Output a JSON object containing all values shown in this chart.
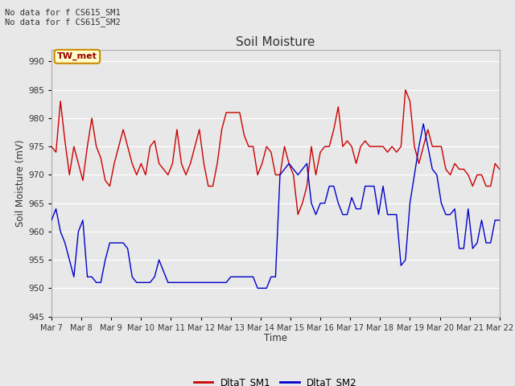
{
  "title": "Soil Moisture",
  "xlabel": "Time",
  "ylabel": "Soil Moisture (mV)",
  "ylim": [
    945,
    992
  ],
  "yticks": [
    945,
    950,
    955,
    960,
    965,
    970,
    975,
    980,
    985,
    990
  ],
  "annotation_text": "No data for f CS615_SM1\nNo data for f CS615_SM2",
  "legend_box_text": "TW_met",
  "x_labels": [
    "Mar 7",
    "Mar 8",
    "Mar 9",
    "Mar 10",
    "Mar 11",
    "Mar 12",
    "Mar 13",
    "Mar 14",
    "Mar 15",
    "Mar 16",
    "Mar 17",
    "Mar 18",
    "Mar 19",
    "Mar 20",
    "Mar 21",
    "Mar 22"
  ],
  "sm1_color": "#cc0000",
  "sm2_color": "#0000cc",
  "sm1_label": "DltaT_SM1",
  "sm2_label": "DltaT_SM2",
  "sm1_x": [
    0,
    0.15,
    0.3,
    0.45,
    0.6,
    0.75,
    0.9,
    1.05,
    1.2,
    1.35,
    1.5,
    1.65,
    1.8,
    1.95,
    2.1,
    2.25,
    2.4,
    2.55,
    2.7,
    2.85,
    3.0,
    3.15,
    3.3,
    3.45,
    3.6,
    3.75,
    3.9,
    4.05,
    4.2,
    4.35,
    4.5,
    4.65,
    4.8,
    4.95,
    5.1,
    5.25,
    5.4,
    5.55,
    5.7,
    5.85,
    6.0,
    6.15,
    6.3,
    6.45,
    6.6,
    6.75,
    6.9,
    7.05,
    7.2,
    7.35,
    7.5,
    7.65,
    7.8,
    7.95,
    8.1,
    8.25,
    8.4,
    8.55,
    8.7,
    8.85,
    9.0,
    9.15,
    9.3,
    9.45,
    9.6,
    9.75,
    9.9,
    10.05,
    10.2,
    10.35,
    10.5,
    10.65,
    10.8,
    10.95,
    11.1,
    11.25,
    11.4,
    11.55,
    11.7,
    11.85,
    12.0,
    12.15,
    12.3,
    12.45,
    12.6,
    12.75,
    12.9,
    13.05,
    13.2,
    13.35,
    13.5,
    13.65,
    13.8,
    13.95,
    14.1,
    14.25,
    14.4,
    14.55,
    14.7,
    14.85,
    15.0
  ],
  "sm1_y": [
    975,
    974,
    983,
    976,
    970,
    975,
    972,
    969,
    975,
    980,
    975,
    973,
    969,
    968,
    972,
    975,
    978,
    975,
    972,
    970,
    972,
    970,
    975,
    976,
    972,
    971,
    970,
    972,
    978,
    972,
    970,
    972,
    975,
    978,
    972,
    968,
    968,
    972,
    978,
    981,
    981,
    981,
    981,
    977,
    975,
    975,
    970,
    972,
    975,
    974,
    970,
    970,
    975,
    972,
    970,
    963,
    965,
    968,
    975,
    970,
    974,
    975,
    975,
    978,
    982,
    975,
    976,
    975,
    972,
    975,
    976,
    975,
    975,
    975,
    975,
    974,
    975,
    974,
    975,
    985,
    983,
    975,
    972,
    975,
    978,
    975,
    975,
    975,
    971,
    970,
    972,
    971,
    971,
    970,
    968,
    970,
    970,
    968,
    968,
    972,
    971
  ],
  "sm2_x": [
    0,
    0.15,
    0.3,
    0.45,
    0.6,
    0.75,
    0.9,
    1.05,
    1.2,
    1.35,
    1.5,
    1.65,
    1.8,
    1.95,
    2.1,
    2.25,
    2.4,
    2.55,
    2.7,
    2.85,
    3.0,
    3.15,
    3.3,
    3.45,
    3.6,
    3.75,
    3.9,
    4.05,
    4.2,
    4.35,
    4.5,
    4.65,
    4.8,
    4.95,
    5.1,
    5.25,
    5.4,
    5.55,
    5.7,
    5.85,
    6.0,
    6.15,
    6.3,
    6.45,
    6.6,
    6.75,
    6.9,
    7.05,
    7.2,
    7.35,
    7.5,
    7.65,
    7.8,
    7.95,
    8.1,
    8.25,
    8.4,
    8.55,
    8.7,
    8.85,
    9.0,
    9.15,
    9.3,
    9.45,
    9.6,
    9.75,
    9.9,
    10.05,
    10.2,
    10.35,
    10.5,
    10.65,
    10.8,
    10.95,
    11.1,
    11.25,
    11.4,
    11.55,
    11.7,
    11.85,
    12.0,
    12.15,
    12.3,
    12.45,
    12.6,
    12.75,
    12.9,
    13.05,
    13.2,
    13.35,
    13.5,
    13.65,
    13.8,
    13.95,
    14.1,
    14.25,
    14.4,
    14.55,
    14.7,
    14.85,
    15.0
  ],
  "sm2_y": [
    962,
    964,
    960,
    958,
    955,
    952,
    960,
    962,
    952,
    952,
    951,
    951,
    955,
    958,
    958,
    958,
    958,
    957,
    952,
    951,
    951,
    951,
    951,
    952,
    955,
    953,
    951,
    951,
    951,
    951,
    951,
    951,
    951,
    951,
    951,
    951,
    951,
    951,
    951,
    951,
    952,
    952,
    952,
    952,
    952,
    952,
    950,
    950,
    950,
    952,
    952,
    970,
    971,
    972,
    971,
    970,
    971,
    972,
    965,
    963,
    965,
    965,
    968,
    968,
    965,
    963,
    963,
    966,
    964,
    964,
    968,
    968,
    968,
    963,
    968,
    963,
    963,
    963,
    954,
    955,
    965,
    970,
    975,
    979,
    975,
    971,
    970,
    965,
    963,
    963,
    964,
    957,
    957,
    964,
    957,
    958,
    962,
    958,
    958,
    962,
    962
  ]
}
